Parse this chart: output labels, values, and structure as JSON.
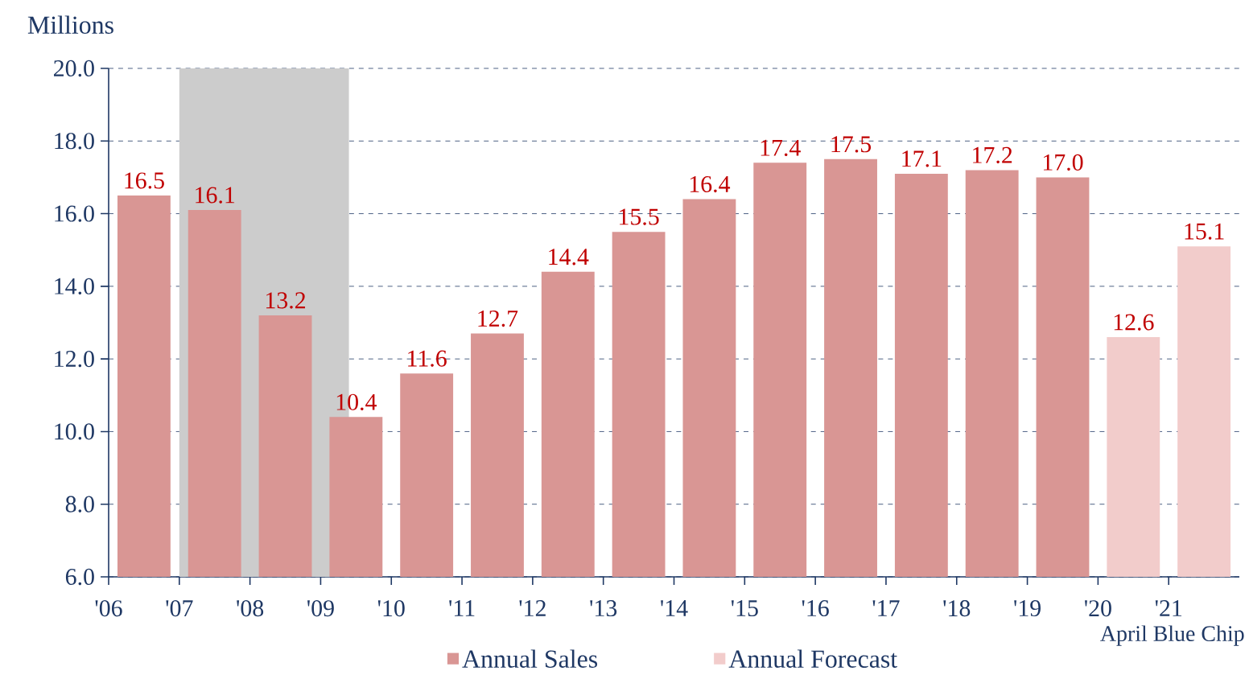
{
  "chart_data": {
    "type": "bar",
    "ylabel": "Millions",
    "series": [
      {
        "name": "Annual Sales",
        "color": "#d99694",
        "x": [
          2006.5,
          2007.5,
          2008.5,
          2009.5,
          2010.5,
          2011.5,
          2012.5,
          2013.5,
          2014.5,
          2015.5,
          2016.5,
          2017.5,
          2018.5,
          2019.5
        ],
        "values": [
          16.5,
          16.1,
          13.2,
          10.4,
          11.6,
          12.7,
          14.4,
          15.5,
          16.4,
          17.4,
          17.5,
          17.1,
          17.2,
          17.0
        ],
        "value_labels": [
          "16.5",
          "16.1",
          "13.2",
          "10.4",
          "11.6",
          "12.7",
          "14.4",
          "15.5",
          "16.4",
          "17.4",
          "17.5",
          "17.1",
          "17.2",
          "17.0"
        ]
      },
      {
        "name": "Annual Forecast",
        "color": "#f2cccb",
        "x": [
          2020.5,
          2021.5
        ],
        "values": [
          12.6,
          15.1
        ],
        "value_labels": [
          "12.6",
          "15.1"
        ]
      }
    ],
    "xlim": [
      2006,
      2022
    ],
    "xticks": [
      {
        "value": 2006,
        "label": "'06"
      },
      {
        "value": 2007,
        "label": "'07"
      },
      {
        "value": 2008,
        "label": "'08"
      },
      {
        "value": 2009,
        "label": "'09"
      },
      {
        "value": 2010,
        "label": "'10"
      },
      {
        "value": 2011,
        "label": "'11"
      },
      {
        "value": 2012,
        "label": "'12"
      },
      {
        "value": 2013,
        "label": "'13"
      },
      {
        "value": 2014,
        "label": "'14"
      },
      {
        "value": 2015,
        "label": "'15"
      },
      {
        "value": 2016,
        "label": "'16"
      },
      {
        "value": 2017,
        "label": "'17"
      },
      {
        "value": 2018,
        "label": "'18"
      },
      {
        "value": 2019,
        "label": "'19"
      },
      {
        "value": 2020,
        "label": "'20"
      },
      {
        "value": 2021,
        "label": "'21"
      }
    ],
    "ylim": [
      6,
      20
    ],
    "yticks": [
      {
        "value": 6,
        "label": "6.0"
      },
      {
        "value": 8,
        "label": "8.0"
      },
      {
        "value": 10,
        "label": "10.0"
      },
      {
        "value": 12,
        "label": "12.0"
      },
      {
        "value": 14,
        "label": "14.0"
      },
      {
        "value": 16,
        "label": "16.0"
      },
      {
        "value": 18,
        "label": "18.0"
      },
      {
        "value": 20,
        "label": "20.0"
      }
    ],
    "bands": [
      {
        "axis": "x",
        "from": 2007,
        "to": 2009.4,
        "color": "#cccccc"
      }
    ],
    "annotations": [
      "April Blue Chip"
    ],
    "grid": "y",
    "legend": "bottom"
  }
}
